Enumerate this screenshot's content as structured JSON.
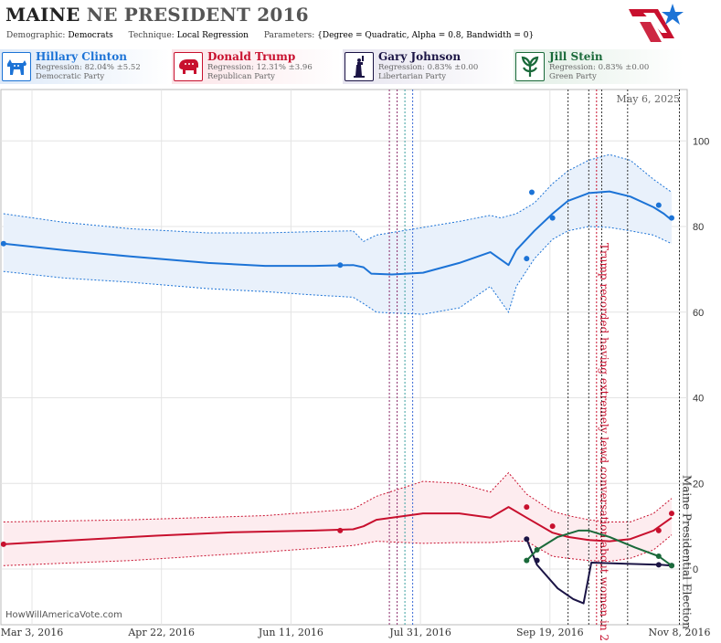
{
  "header": {
    "title_main": "MAINE",
    "title_sub": "NE PRESIDENT 2016",
    "demographic_label": "Demographic:",
    "demographic_value": "Democrats",
    "technique_label": "Technique:",
    "technique_value": "Local Regression",
    "parameters_label": "Parameters:",
    "parameters_value": "{Degree = Quadratic, Alpha = 0.8, Bandwidth = 0}"
  },
  "candidates": [
    {
      "name": "Hillary Clinton",
      "regression": "Regression: 82.04% ±5.52",
      "party": "Democratic Party",
      "color": "#1c73d6",
      "icon": "donkey-icon"
    },
    {
      "name": "Donald Trump",
      "regression": "Regression: 12.31% ±3.96",
      "party": "Republican Party",
      "color": "#c8102e",
      "icon": "elephant-icon"
    },
    {
      "name": "Gary Johnson",
      "regression": "Regression: 0.83% ±0.00",
      "party": "Libertarian Party",
      "color": "#1b1445",
      "icon": "statue-of-liberty-icon"
    },
    {
      "name": "Jill Stein",
      "regression": "Regression: 0.83% ±0.00",
      "party": "Green Party",
      "color": "#1a6a3a",
      "icon": "leaf-icon"
    }
  ],
  "watermark": "HowWillAmericaVote.com",
  "chart_data": {
    "type": "line",
    "date_label": "May 6, 2025",
    "xlim": [
      "2016-02-20",
      "2016-11-11"
    ],
    "ylim": [
      -13,
      112
    ],
    "x_ticks": [
      {
        "label": "Mar 3, 2016",
        "date": "2016-03-03"
      },
      {
        "label": "Apr 22, 2016",
        "date": "2016-04-22"
      },
      {
        "label": "Jun 11, 2016",
        "date": "2016-06-11"
      },
      {
        "label": "Jul 31, 2016",
        "date": "2016-07-31"
      },
      {
        "label": "Sep 19, 2016",
        "date": "2016-09-19"
      },
      {
        "label": "Nov 8, 2016",
        "date": "2016-11-08"
      }
    ],
    "y_ticks": [
      0,
      20,
      40,
      60,
      80,
      100
    ],
    "grid": true,
    "events": [
      {
        "date": "2016-07-19",
        "color": "#8a2a6a",
        "style": "dotted"
      },
      {
        "date": "2016-07-22",
        "color": "#8a2a6a",
        "style": "dotted"
      },
      {
        "date": "2016-07-25",
        "color": "#3aa0a0",
        "style": "dotted"
      },
      {
        "date": "2016-07-28",
        "color": "#3a6ad6",
        "style": "dotted"
      },
      {
        "date": "2016-09-26",
        "color": "#333333",
        "style": "dotted"
      },
      {
        "date": "2016-10-04",
        "color": "#333333",
        "style": "dotted"
      },
      {
        "date": "2016-10-07",
        "color": "#c8102e",
        "style": "dotted",
        "label": "Trump recorded having extremely lewd conversation about women in 2005"
      },
      {
        "date": "2016-10-09",
        "color": "#333333",
        "style": "dotted"
      },
      {
        "date": "2016-10-19",
        "color": "#333333",
        "style": "dotted"
      },
      {
        "date": "2016-11-08",
        "color": "#333333",
        "style": "dotted",
        "label": "Maine Presidential Election"
      }
    ],
    "series": [
      {
        "name": "Hillary Clinton",
        "color": "#1c73d6",
        "fill": "#e9f1fb",
        "line": [
          [
            "2016-02-21",
            76
          ],
          [
            "2016-03-15",
            74.5
          ],
          [
            "2016-04-10",
            73
          ],
          [
            "2016-05-10",
            71.5
          ],
          [
            "2016-06-01",
            70.8
          ],
          [
            "2016-06-20",
            70.8
          ],
          [
            "2016-07-05",
            71
          ],
          [
            "2016-07-09",
            70.5
          ],
          [
            "2016-07-12",
            69
          ],
          [
            "2016-07-20",
            68.8
          ],
          [
            "2016-08-01",
            69.2
          ],
          [
            "2016-08-15",
            71.5
          ],
          [
            "2016-08-27",
            74
          ],
          [
            "2016-09-03",
            71
          ],
          [
            "2016-09-06",
            74.5
          ],
          [
            "2016-09-13",
            79
          ],
          [
            "2016-09-20",
            83
          ],
          [
            "2016-09-26",
            86
          ],
          [
            "2016-10-04",
            87.8
          ],
          [
            "2016-10-12",
            88.2
          ],
          [
            "2016-10-20",
            87
          ],
          [
            "2016-10-29",
            84.5
          ],
          [
            "2016-11-02",
            83
          ],
          [
            "2016-11-05",
            81.5
          ]
        ],
        "upper": [
          [
            "2016-02-21",
            83
          ],
          [
            "2016-03-15",
            81
          ],
          [
            "2016-04-10",
            79.5
          ],
          [
            "2016-05-10",
            78.5
          ],
          [
            "2016-06-01",
            78.5
          ],
          [
            "2016-06-20",
            78.8
          ],
          [
            "2016-07-05",
            79
          ],
          [
            "2016-07-09",
            76.5
          ],
          [
            "2016-07-14",
            78
          ],
          [
            "2016-08-01",
            79.8
          ],
          [
            "2016-08-15",
            81.2
          ],
          [
            "2016-08-27",
            82.6
          ],
          [
            "2016-08-31",
            82
          ],
          [
            "2016-09-06",
            83
          ],
          [
            "2016-09-13",
            85.5
          ],
          [
            "2016-09-20",
            90
          ],
          [
            "2016-09-26",
            93
          ],
          [
            "2016-10-04",
            95.5
          ],
          [
            "2016-10-12",
            96.8
          ],
          [
            "2016-10-20",
            95.5
          ],
          [
            "2016-10-29",
            91
          ],
          [
            "2016-11-05",
            88
          ]
        ],
        "lower": [
          [
            "2016-02-21",
            69.5
          ],
          [
            "2016-03-15",
            68
          ],
          [
            "2016-04-10",
            67
          ],
          [
            "2016-05-10",
            65.5
          ],
          [
            "2016-06-01",
            64.8
          ],
          [
            "2016-06-20",
            64
          ],
          [
            "2016-07-05",
            63.5
          ],
          [
            "2016-07-09",
            62
          ],
          [
            "2016-07-14",
            60
          ],
          [
            "2016-08-01",
            59.5
          ],
          [
            "2016-08-15",
            61
          ],
          [
            "2016-08-27",
            66
          ],
          [
            "2016-09-03",
            60
          ],
          [
            "2016-09-06",
            66
          ],
          [
            "2016-09-13",
            72.5
          ],
          [
            "2016-09-20",
            77
          ],
          [
            "2016-09-26",
            79
          ],
          [
            "2016-10-04",
            80
          ],
          [
            "2016-10-12",
            79.8
          ],
          [
            "2016-10-20",
            79
          ],
          [
            "2016-10-29",
            78
          ],
          [
            "2016-11-05",
            76
          ]
        ],
        "points": [
          [
            "2016-02-21",
            76
          ],
          [
            "2016-06-30",
            71
          ],
          [
            "2016-09-10",
            72.5
          ],
          [
            "2016-09-12",
            88
          ],
          [
            "2016-09-20",
            82
          ],
          [
            "2016-10-31",
            85
          ],
          [
            "2016-11-05",
            82
          ]
        ]
      },
      {
        "name": "Donald Trump",
        "color": "#c8102e",
        "fill": "#fdecef",
        "line": [
          [
            "2016-02-21",
            5.8
          ],
          [
            "2016-03-15",
            6.6
          ],
          [
            "2016-04-20",
            7.8
          ],
          [
            "2016-05-20",
            8.6
          ],
          [
            "2016-06-20",
            9
          ],
          [
            "2016-07-05",
            9.3
          ],
          [
            "2016-07-09",
            10
          ],
          [
            "2016-07-14",
            11.5
          ],
          [
            "2016-08-01",
            13
          ],
          [
            "2016-08-15",
            13
          ],
          [
            "2016-08-27",
            12
          ],
          [
            "2016-09-03",
            14.5
          ],
          [
            "2016-09-10",
            12
          ],
          [
            "2016-09-20",
            8.5
          ],
          [
            "2016-09-26",
            7.5
          ],
          [
            "2016-10-04",
            6.8
          ],
          [
            "2016-10-12",
            6.5
          ],
          [
            "2016-10-20",
            7
          ],
          [
            "2016-10-29",
            9
          ],
          [
            "2016-11-05",
            12
          ]
        ],
        "upper": [
          [
            "2016-02-21",
            11
          ],
          [
            "2016-04-10",
            11.5
          ],
          [
            "2016-06-01",
            12.5
          ],
          [
            "2016-07-05",
            14
          ],
          [
            "2016-07-14",
            17
          ],
          [
            "2016-08-01",
            20.5
          ],
          [
            "2016-08-15",
            20
          ],
          [
            "2016-08-27",
            18
          ],
          [
            "2016-09-03",
            22.5
          ],
          [
            "2016-09-10",
            17.5
          ],
          [
            "2016-09-20",
            13.5
          ],
          [
            "2016-09-26",
            12.5
          ],
          [
            "2016-10-04",
            11.5
          ],
          [
            "2016-10-12",
            11
          ],
          [
            "2016-10-20",
            11
          ],
          [
            "2016-10-29",
            13
          ],
          [
            "2016-11-05",
            16.5
          ]
        ],
        "lower": [
          [
            "2016-02-21",
            0.8
          ],
          [
            "2016-04-10",
            2
          ],
          [
            "2016-06-01",
            4
          ],
          [
            "2016-07-05",
            5.5
          ],
          [
            "2016-07-14",
            6.5
          ],
          [
            "2016-08-01",
            6
          ],
          [
            "2016-08-15",
            6.2
          ],
          [
            "2016-08-27",
            6.2
          ],
          [
            "2016-09-03",
            6.5
          ],
          [
            "2016-09-10",
            6.5
          ],
          [
            "2016-09-20",
            3
          ],
          [
            "2016-09-26",
            2.5
          ],
          [
            "2016-10-04",
            2
          ],
          [
            "2016-10-12",
            1.8
          ],
          [
            "2016-10-20",
            2.5
          ],
          [
            "2016-10-29",
            4.5
          ],
          [
            "2016-11-05",
            8
          ]
        ],
        "points": [
          [
            "2016-02-21",
            5.8
          ],
          [
            "2016-06-30",
            9
          ],
          [
            "2016-09-10",
            14.5
          ],
          [
            "2016-09-20",
            10
          ],
          [
            "2016-10-31",
            9
          ],
          [
            "2016-11-05",
            13
          ]
        ]
      },
      {
        "name": "Gary Johnson",
        "color": "#1b1445",
        "line": [
          [
            "2016-09-10",
            7
          ],
          [
            "2016-09-14",
            1
          ],
          [
            "2016-09-22",
            -4.5
          ],
          [
            "2016-09-28",
            -7
          ],
          [
            "2016-10-02",
            -8
          ],
          [
            "2016-10-05",
            1.5
          ],
          [
            "2016-10-20",
            1.2
          ],
          [
            "2016-11-01",
            1
          ],
          [
            "2016-11-05",
            0.8
          ]
        ],
        "points": [
          [
            "2016-09-10",
            7
          ],
          [
            "2016-09-14",
            2
          ],
          [
            "2016-10-31",
            1
          ],
          [
            "2016-11-05",
            0.8
          ]
        ]
      },
      {
        "name": "Jill Stein",
        "color": "#1a6a3a",
        "line": [
          [
            "2016-09-10",
            2
          ],
          [
            "2016-09-14",
            4.5
          ],
          [
            "2016-09-22",
            7.5
          ],
          [
            "2016-09-30",
            9
          ],
          [
            "2016-10-04",
            9
          ],
          [
            "2016-10-12",
            7.5
          ],
          [
            "2016-10-22",
            5
          ],
          [
            "2016-10-31",
            3
          ],
          [
            "2016-11-05",
            0.8
          ]
        ],
        "points": [
          [
            "2016-09-10",
            2
          ],
          [
            "2016-09-14",
            4.5
          ],
          [
            "2016-10-31",
            3
          ],
          [
            "2016-11-05",
            0.8
          ]
        ]
      }
    ]
  }
}
